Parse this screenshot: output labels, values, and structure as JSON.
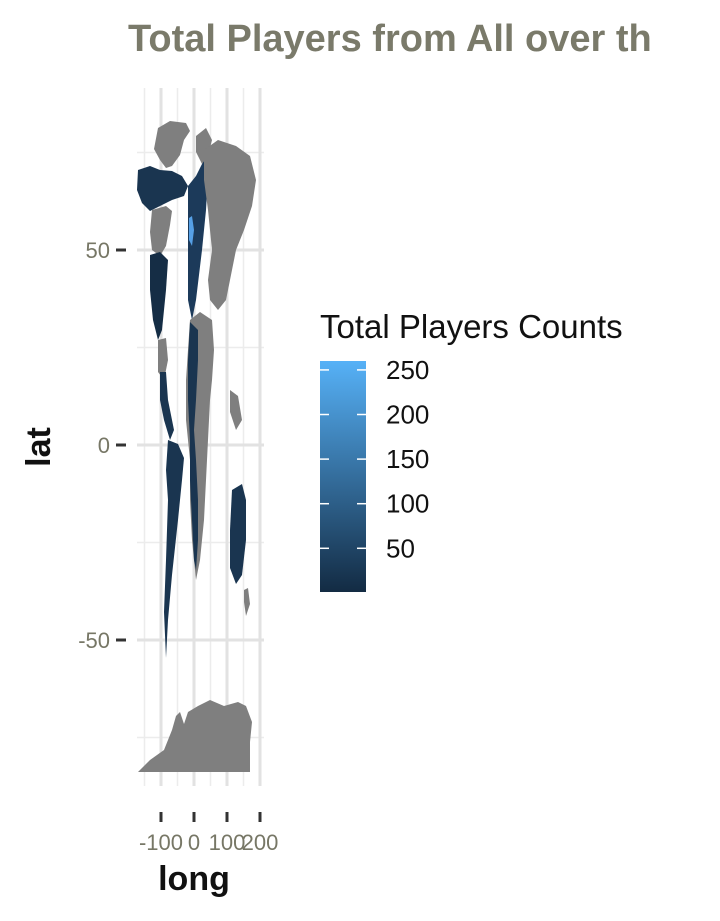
{
  "chart_data": {
    "type": "choropleth-map",
    "title": "Total Players from All over th",
    "xlabel": "long",
    "ylabel": "lat",
    "xlim": [
      -180,
      200
    ],
    "ylim": [
      -90,
      85
    ],
    "x_ticks": [
      {
        "value": -100,
        "label": "-100"
      },
      {
        "value": 0,
        "label": "0"
      },
      {
        "value": 100,
        "label": "100"
      },
      {
        "value": 200,
        "label": "200"
      }
    ],
    "y_ticks": [
      {
        "value": 50,
        "label": "50"
      },
      {
        "value": 0,
        "label": "0"
      },
      {
        "value": -50,
        "label": "-50"
      }
    ],
    "grid": true,
    "legend": {
      "title": "Total Players Counts",
      "position": "right",
      "range": [
        1,
        260
      ],
      "breaks": [
        250,
        200,
        150,
        100,
        50
      ],
      "low_color": "#132b43",
      "high_color": "#56b1f7"
    },
    "na_color": "#7f7f7f"
  }
}
